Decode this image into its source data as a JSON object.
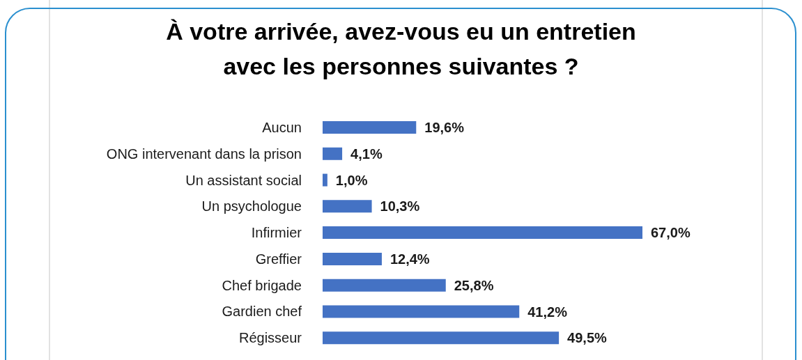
{
  "chart_data": {
    "type": "bar",
    "orientation": "horizontal",
    "title": "À votre arrivée, avez-vous eu un entretien avec les personnes suivantes ?",
    "categories": [
      "Aucun",
      "ONG intervenant dans la prison",
      "Un assistant social",
      "Un psychologue",
      "Infirmier",
      "Greffier",
      "Chef brigade",
      "Gardien chef",
      "Régisseur"
    ],
    "values": [
      19.6,
      4.1,
      1.0,
      10.3,
      67.0,
      12.4,
      25.8,
      41.2,
      49.5
    ],
    "value_labels": [
      "19,6%",
      "4,1%",
      "1,0%",
      "10,3%",
      "67,0%",
      "12,4%",
      "25,8%",
      "41,2%",
      "49,5%"
    ],
    "color": "#4472c4"
  }
}
